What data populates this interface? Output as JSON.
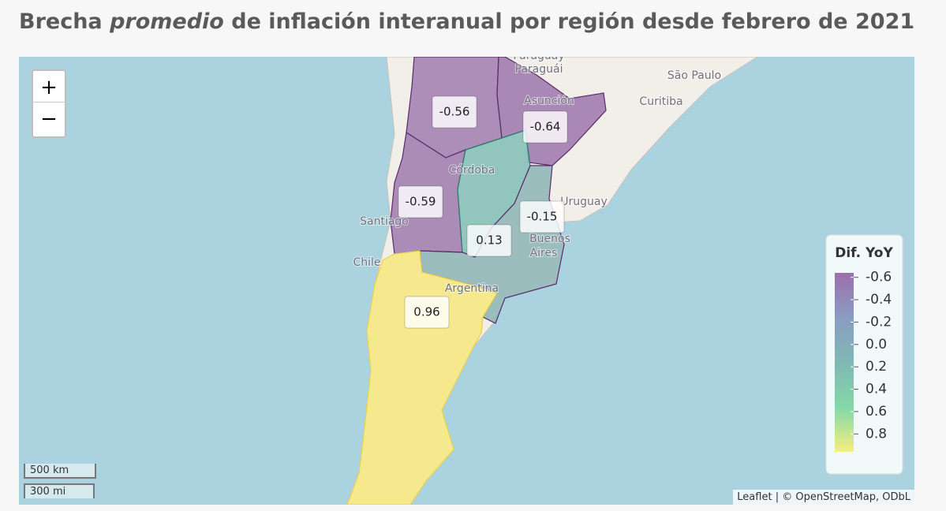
{
  "title": {
    "prefix": "Brecha ",
    "emphasis": "promedio",
    "suffix": " de inflación interanual por región desde febrero de 2021"
  },
  "zoom": {
    "in": "+",
    "out": "−"
  },
  "places": [
    "Paraguay",
    "Paraguái",
    "São Paulo",
    "Curitiba",
    "Asunción",
    "Córdoba",
    "Uruguay",
    "Santiago",
    "Chile",
    "Buenos",
    "Aires",
    "Argentina"
  ],
  "regions": [
    {
      "value": -0.56,
      "color": "#a07db0"
    },
    {
      "value": -0.64,
      "color": "#9d76ab"
    },
    {
      "value": -0.59,
      "color": "#9f7aae"
    },
    {
      "value": 0.13,
      "color": "#80bdb5"
    },
    {
      "value": -0.15,
      "color": "#8db4b6"
    },
    {
      "value": 0.96,
      "color": "#f6e67c"
    }
  ],
  "legend": {
    "title": "Dif. YoY",
    "ticks": [
      -0.6,
      -0.4,
      -0.2,
      {
        "value": 0,
        "label": "0.0"
      },
      0.2,
      0.4,
      0.6,
      0.8
    ],
    "colors": [
      "#9c6fa9",
      "#8a9cc2",
      "#7fb8b4",
      "#82d8a8",
      "#f5ef80"
    ]
  },
  "scale": {
    "metric": "500 km",
    "imperial": "300 mi"
  },
  "attribution": "Leaflet | © OpenStreetMap, ODbL"
}
